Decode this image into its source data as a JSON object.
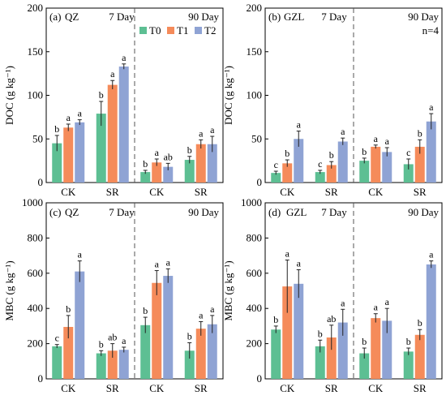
{
  "colors": {
    "T0": "#5dbf93",
    "T1": "#f58b5a",
    "T2": "#8fa3d4",
    "axis": "#000000",
    "divider": "#555555"
  },
  "chart_data": [
    {
      "type": "bar",
      "panel_label": "(a)",
      "site": "QZ",
      "period_labels": [
        "7 Day",
        "90 Day"
      ],
      "ylabel": "DOC (g kg⁻¹)",
      "ylim": [
        0,
        200
      ],
      "yticks": [
        0,
        50,
        100,
        150,
        200
      ],
      "categories": [
        "CK",
        "SR",
        "CK",
        "SR"
      ],
      "legend": [
        "T0",
        "T1",
        "T2"
      ],
      "legend_position": "top-right",
      "note": "",
      "series": [
        {
          "name": "T0",
          "values": [
            45,
            79,
            12,
            26
          ],
          "errors": [
            9,
            14,
            2,
            4
          ],
          "letters": [
            "b",
            "b",
            "b",
            "b"
          ]
        },
        {
          "name": "T1",
          "values": [
            63,
            112,
            23,
            44
          ],
          "errors": [
            4,
            5,
            4,
            5
          ],
          "letters": [
            "a",
            "a",
            "a",
            "a"
          ]
        },
        {
          "name": "T2",
          "values": [
            69,
            133,
            18,
            44
          ],
          "errors": [
            3,
            3,
            4,
            9
          ],
          "letters": [
            "a",
            "a",
            "ab",
            "a"
          ]
        }
      ]
    },
    {
      "type": "bar",
      "panel_label": "(b)",
      "site": "GZL",
      "period_labels": [
        "7 Day",
        "90 Day"
      ],
      "ylabel": "DOC (g kg⁻¹)",
      "ylim": [
        0,
        200
      ],
      "yticks": [
        0,
        50,
        100,
        150,
        200
      ],
      "categories": [
        "CK",
        "SR",
        "CK",
        "SR"
      ],
      "note": "n=4",
      "series": [
        {
          "name": "T0",
          "values": [
            11,
            12,
            25,
            21
          ],
          "errors": [
            2,
            2,
            3,
            6
          ],
          "letters": [
            "c",
            "c",
            "b",
            "c"
          ]
        },
        {
          "name": "T1",
          "values": [
            22,
            20,
            41,
            41
          ],
          "errors": [
            4,
            4,
            2,
            8
          ],
          "letters": [
            "b",
            "b",
            "a",
            "b"
          ]
        },
        {
          "name": "T2",
          "values": [
            50,
            47,
            35,
            70
          ],
          "errors": [
            9,
            4,
            5,
            9
          ],
          "letters": [
            "a",
            "a",
            "a",
            "a"
          ]
        }
      ]
    },
    {
      "type": "bar",
      "panel_label": "(c)",
      "site": "QZ",
      "period_labels": [
        "7 Day",
        "90 Day"
      ],
      "ylabel": "MBC (g kg⁻¹)",
      "ylim": [
        0,
        1000
      ],
      "yticks": [
        0,
        200,
        400,
        600,
        800,
        1000
      ],
      "categories": [
        "CK",
        "SR",
        "CK",
        "SR"
      ],
      "note": "",
      "series": [
        {
          "name": "T0",
          "values": [
            185,
            145,
            305,
            160
          ],
          "errors": [
            10,
            15,
            45,
            45
          ],
          "letters": [
            "c",
            "b",
            "b",
            "b"
          ]
        },
        {
          "name": "T1",
          "values": [
            295,
            160,
            545,
            285
          ],
          "errors": [
            65,
            40,
            70,
            40
          ],
          "letters": [
            "b",
            "ab",
            "a",
            "a"
          ]
        },
        {
          "name": "T2",
          "values": [
            610,
            165,
            585,
            310
          ],
          "errors": [
            60,
            15,
            40,
            50
          ],
          "letters": [
            "a",
            "a",
            "a",
            "a"
          ]
        }
      ]
    },
    {
      "type": "bar",
      "panel_label": "(d)",
      "site": "GZL",
      "period_labels": [
        "7 Day",
        "90 Day"
      ],
      "ylabel": "MBC (g kg⁻¹)",
      "ylim": [
        0,
        1000
      ],
      "yticks": [
        0,
        200,
        400,
        600,
        800,
        1000
      ],
      "categories": [
        "CK",
        "SR",
        "CK",
        "SR"
      ],
      "note": "",
      "series": [
        {
          "name": "T0",
          "values": [
            280,
            185,
            145,
            155
          ],
          "errors": [
            20,
            35,
            30,
            20
          ],
          "letters": [
            "b",
            "b",
            "b",
            "b"
          ]
        },
        {
          "name": "T1",
          "values": [
            525,
            235,
            345,
            250
          ],
          "errors": [
            150,
            70,
            25,
            30
          ],
          "letters": [
            "a",
            "ab",
            "a",
            "b"
          ]
        },
        {
          "name": "T2",
          "values": [
            540,
            320,
            330,
            650
          ],
          "errors": [
            80,
            75,
            70,
            20
          ],
          "letters": [
            "a",
            "a",
            "a",
            "a"
          ]
        }
      ]
    }
  ]
}
